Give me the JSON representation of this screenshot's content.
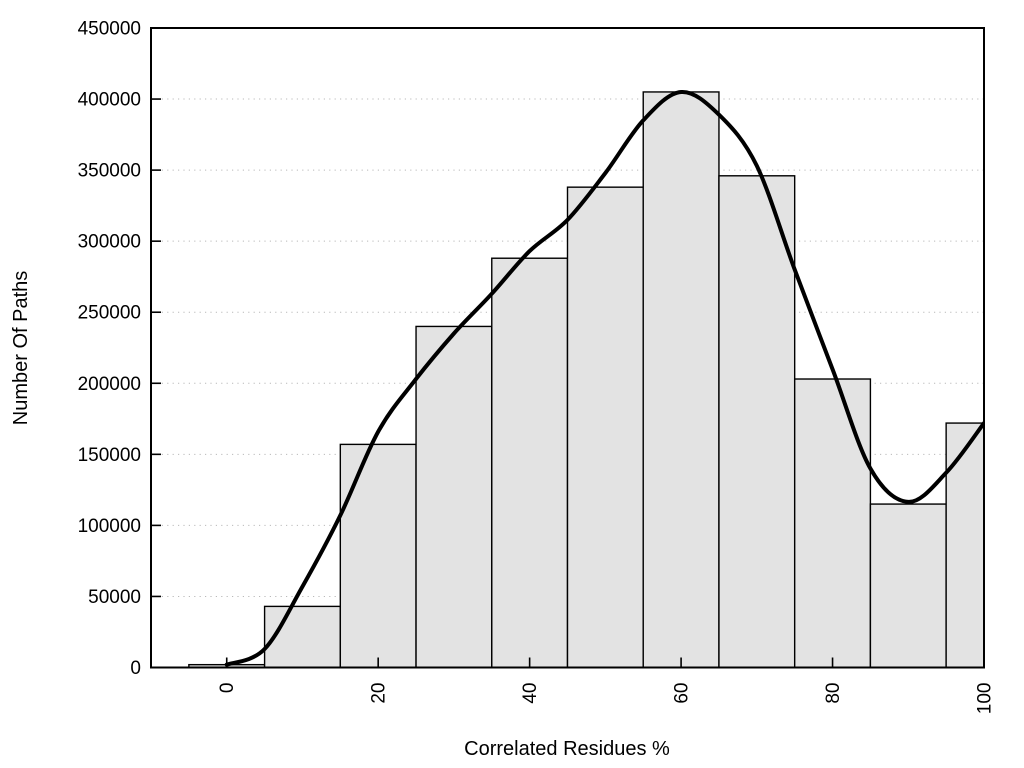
{
  "chart_data": {
    "type": "bar",
    "subtype": "histogram-with-density-curve",
    "title": "",
    "xlabel": "Correlated Residues %",
    "ylabel": "Number Of Paths",
    "xlim": [
      -10,
      100
    ],
    "ylim": [
      0,
      450000
    ],
    "x_ticks": [
      0,
      20,
      40,
      60,
      80,
      100
    ],
    "y_ticks": [
      0,
      50000,
      100000,
      150000,
      200000,
      250000,
      300000,
      350000,
      400000,
      450000
    ],
    "grid": "horizontal-dotted-at-y-ticks-50000-to-400000",
    "legend": "none",
    "bars": {
      "bin_width": 10,
      "centers": [
        0,
        10,
        20,
        30,
        40,
        50,
        60,
        70,
        80,
        90,
        100
      ],
      "values": [
        2000,
        43000,
        157000,
        240000,
        288000,
        338000,
        405000,
        346000,
        203000,
        115000,
        172000
      ],
      "note": "last bar clipped at x=100 plot edge"
    },
    "curve_points": [
      [
        0,
        2000
      ],
      [
        5,
        13000
      ],
      [
        10,
        57000
      ],
      [
        15,
        107000
      ],
      [
        20,
        166000
      ],
      [
        25,
        203000
      ],
      [
        30,
        235000
      ],
      [
        35,
        263000
      ],
      [
        40,
        293000
      ],
      [
        45,
        315000
      ],
      [
        50,
        348000
      ],
      [
        55,
        385000
      ],
      [
        60,
        405000
      ],
      [
        65,
        389000
      ],
      [
        70,
        353000
      ],
      [
        75,
        280000
      ],
      [
        80,
        210000
      ],
      [
        85,
        140000
      ],
      [
        90,
        116500
      ],
      [
        95,
        137000
      ],
      [
        100,
        172000
      ]
    ],
    "colors": {
      "background": "#ffffff",
      "bar_fill": "#e3e3e3",
      "bar_stroke": "#000000",
      "curve": "#000000",
      "axis": "#000000",
      "grid": "#b9b9b9",
      "text": "#000000"
    }
  }
}
